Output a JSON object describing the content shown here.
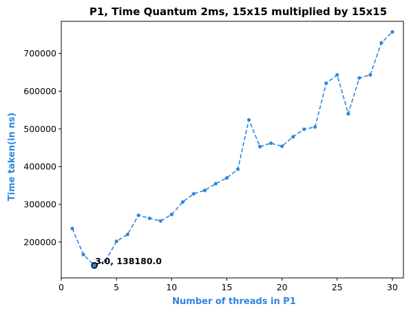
{
  "chart_data": {
    "type": "line",
    "title": "P1, Time Quantum 2ms, 15x15 multiplied by 15x15",
    "xlabel": "Number of threads in P1",
    "ylabel": "Time taken(in ns)",
    "xlim": [
      0,
      31
    ],
    "ylim": [
      105000,
      785000
    ],
    "x_ticks": [
      0,
      5,
      10,
      15,
      20,
      25,
      30
    ],
    "y_ticks": [
      200000,
      300000,
      400000,
      500000,
      600000,
      700000
    ],
    "grid": false,
    "series": [
      {
        "line_style": "dashed",
        "marker": "circle",
        "color": "#2e86de",
        "x": [
          1,
          2,
          3,
          4,
          5,
          6,
          7,
          8,
          9,
          10,
          11,
          12,
          13,
          14,
          15,
          16,
          17,
          18,
          19,
          20,
          21,
          22,
          23,
          24,
          25,
          26,
          27,
          28,
          29,
          30
        ],
        "y": [
          236000,
          167000,
          138180,
          150000,
          202000,
          220000,
          271000,
          263000,
          256000,
          273000,
          306000,
          328000,
          337000,
          355000,
          370000,
          393000,
          524000,
          453000,
          462000,
          454000,
          479000,
          499000,
          505000,
          621000,
          643000,
          540000,
          635000,
          643000,
          728000,
          757000
        ]
      }
    ],
    "annotations": [
      {
        "x": 3,
        "y": 138180,
        "text": "3.0, 138180.0"
      }
    ],
    "label_color": "#2e86de"
  }
}
